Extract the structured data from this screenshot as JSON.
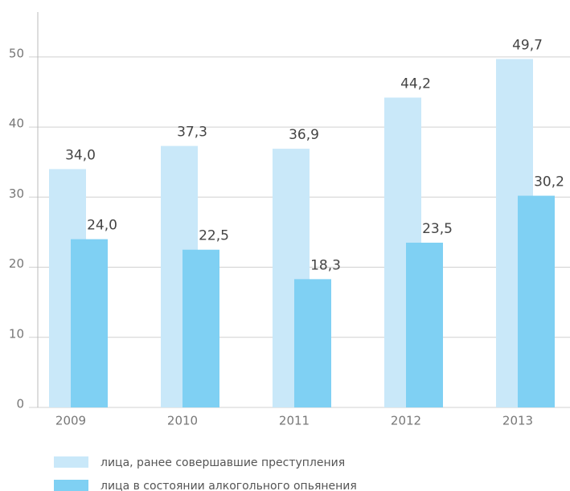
{
  "chart_data": {
    "type": "bar",
    "categories": [
      "2009",
      "2010",
      "2011",
      "2012",
      "2013"
    ],
    "series": [
      {
        "name": "лица, ранее совершавшие преступления",
        "color": "#c9e8f9",
        "values": [
          34.0,
          37.3,
          36.9,
          44.2,
          49.7
        ],
        "value_labels": [
          "34,0",
          "37,3",
          "36,9",
          "44,2",
          "49,7"
        ]
      },
      {
        "name": "лица в состоянии алкогольного опьянения",
        "color": "#7fd0f3",
        "values": [
          24.0,
          22.5,
          18.3,
          23.5,
          30.2
        ],
        "value_labels": [
          "24,0",
          "22,5",
          "18,3",
          "23,5",
          "30,2"
        ]
      }
    ],
    "ylim": [
      0,
      56.4
    ],
    "yticks": [
      0,
      10,
      20,
      30,
      40,
      50
    ],
    "grid": true
  }
}
